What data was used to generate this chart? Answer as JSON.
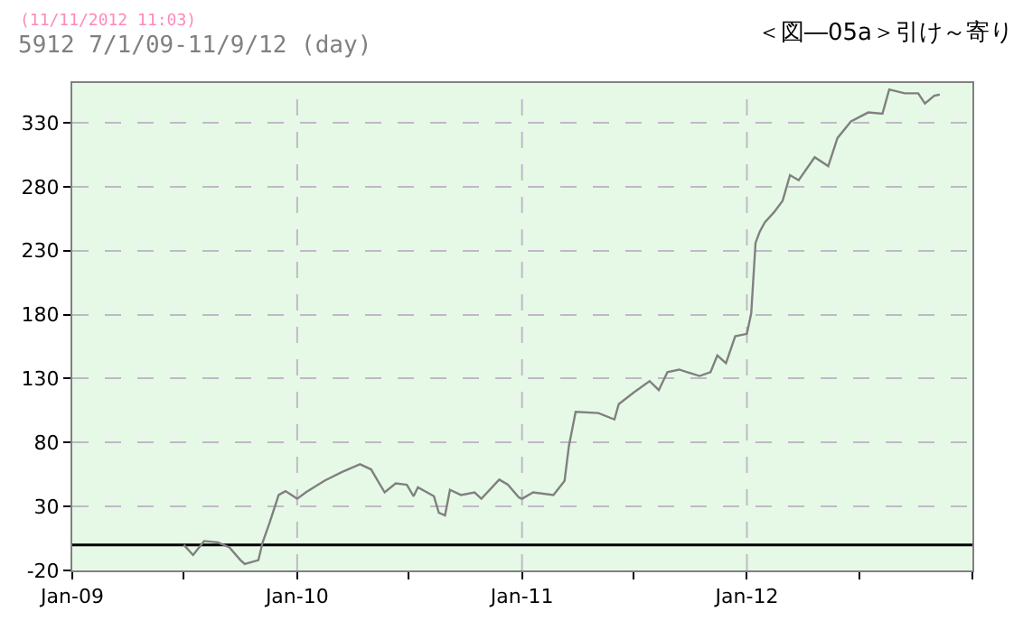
{
  "chart_data": {
    "type": "line",
    "title": "5912 7/1/09-11/9/12 (day)",
    "annotations": [
      "(11/11/2012 11:03)",
      "＜図―05a＞引け～寄り"
    ],
    "x": [
      "2009-07-01",
      "2009-07-16",
      "2009-08-03",
      "2009-08-25",
      "2009-09-13",
      "2009-10-01",
      "2009-10-08",
      "2009-10-30",
      "2009-11-06",
      "2009-11-17",
      "2009-12-02",
      "2009-12-13",
      "2010-01-01",
      "2010-01-15",
      "2010-02-14",
      "2010-03-15",
      "2010-04-13",
      "2010-05-01",
      "2010-05-12",
      "2010-05-23",
      "2010-06-10",
      "2010-06-28",
      "2010-07-09",
      "2010-07-16",
      "2010-08-11",
      "2010-08-19",
      "2010-08-29",
      "2010-09-06",
      "2010-09-24",
      "2010-10-16",
      "2010-10-27",
      "2010-11-25",
      "2010-12-09",
      "2010-12-27",
      "2011-01-01",
      "2011-01-19",
      "2011-02-21",
      "2011-03-11",
      "2011-03-18",
      "2011-03-29",
      "2011-05-05",
      "2011-05-31",
      "2011-06-07",
      "2011-07-01",
      "2011-07-27",
      "2011-08-11",
      "2011-08-25",
      "2011-09-13",
      "2011-10-16",
      "2011-11-03",
      "2011-11-14",
      "2011-11-28",
      "2011-12-13",
      "2012-01-01",
      "2012-01-08",
      "2012-01-15",
      "2012-01-22",
      "2012-01-30",
      "2012-02-14",
      "2012-02-28",
      "2012-03-11",
      "2012-03-25",
      "2012-04-20",
      "2012-05-12",
      "2012-05-27",
      "2012-06-18",
      "2012-07-16",
      "2012-08-08",
      "2012-08-19",
      "2012-09-13",
      "2012-10-05",
      "2012-10-16",
      "2012-10-31",
      "2012-11-09"
    ],
    "series": [
      {
        "color": "#808080",
        "values": [
          0,
          -8,
          3,
          2,
          -2,
          -12,
          -15,
          -12,
          2,
          17,
          39,
          42,
          36,
          41,
          50,
          57,
          63,
          59,
          50,
          41,
          48,
          47,
          38,
          45,
          38,
          25,
          23,
          43,
          39,
          41,
          36,
          51,
          47,
          37,
          36,
          41,
          39,
          50,
          77,
          104,
          103,
          98,
          110,
          119,
          128,
          121,
          135,
          137,
          132,
          135,
          148,
          142,
          163,
          165,
          181,
          236,
          245,
          252,
          260,
          269,
          289,
          285,
          303,
          296,
          318,
          331,
          338,
          337,
          356,
          353,
          353,
          345,
          351,
          352
        ]
      }
    ],
    "xlim": [
      "2009-01-01",
      "2013-01-01"
    ],
    "xticks": [
      {
        "value": "2009-01-01",
        "label": "Jan-09"
      },
      {
        "value": "2009-07-01",
        "label": null
      },
      {
        "value": "2010-01-01",
        "label": "Jan-10"
      },
      {
        "value": "2010-07-01",
        "label": null
      },
      {
        "value": "2011-01-01",
        "label": "Jan-11"
      },
      {
        "value": "2011-07-01",
        "label": null
      },
      {
        "value": "2012-01-01",
        "label": "Jan-12"
      },
      {
        "value": "2012-07-01",
        "label": null
      },
      {
        "value": "2013-01-01",
        "label": null
      }
    ],
    "ylim": [
      -20,
      361
    ],
    "yticks": [
      -20,
      30,
      80,
      130,
      180,
      230,
      280,
      330
    ],
    "ref_lines": [
      {
        "axis": "y",
        "value": 0,
        "color": "#000000"
      }
    ],
    "grid": true,
    "marker": "none",
    "line_style": "solid"
  }
}
